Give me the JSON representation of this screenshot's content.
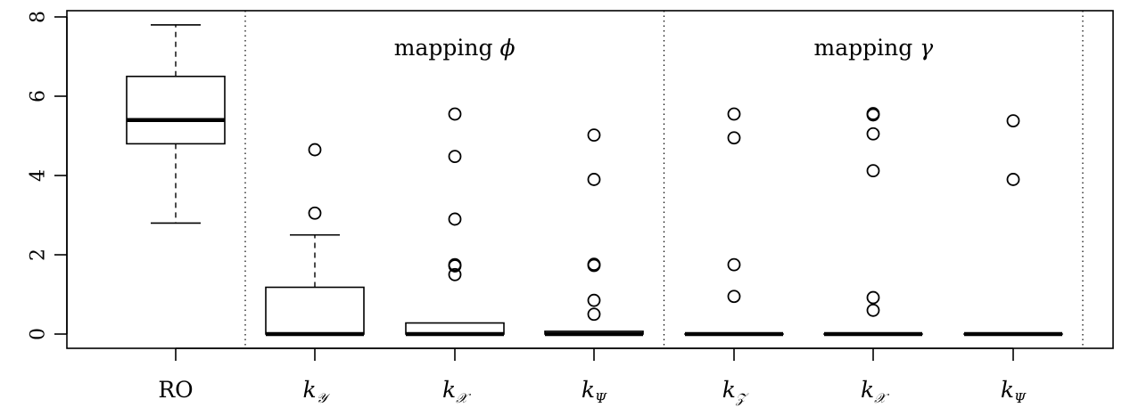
{
  "chart_data": {
    "type": "box",
    "ylim": [
      0,
      8
    ],
    "y_ticks": [
      "0",
      "2",
      "4",
      "6",
      "8"
    ],
    "grid": false,
    "groups": [
      {
        "label": "RO",
        "whisker_low": 2.8,
        "q1": 4.8,
        "median": 5.4,
        "q3": 6.5,
        "whisker_high": 7.8,
        "outliers": []
      },
      {
        "label_main": "k",
        "label_sub": "𝒴",
        "whisker_low": 0,
        "q1": 0,
        "median": 0,
        "q3": 1.18,
        "whisker_high": 2.5,
        "outliers": [
          3.05,
          4.65
        ]
      },
      {
        "label_main": "k",
        "label_sub": "𝒳",
        "whisker_low": 0,
        "q1": 0,
        "median": 0,
        "q3": 0.28,
        "whisker_high": 0.28,
        "outliers": [
          1.5,
          1.72,
          1.75,
          2.9,
          4.48,
          5.55
        ]
      },
      {
        "label_main": "k",
        "label_sub": "Ψ",
        "whisker_low": 0,
        "q1": 0,
        "median": 0,
        "q3": 0.07,
        "whisker_high": 0.07,
        "outliers": [
          0.5,
          0.85,
          1.73,
          1.76,
          3.9,
          5.02
        ]
      },
      {
        "label_main": "k",
        "label_sub": "𝒵",
        "whisker_low": 0,
        "q1": 0,
        "median": 0,
        "q3": 0,
        "whisker_high": 0,
        "outliers": [
          0.95,
          1.75,
          4.95,
          5.55
        ]
      },
      {
        "label_main": "k",
        "label_sub": "𝒳",
        "whisker_low": 0,
        "q1": 0,
        "median": 0,
        "q3": 0,
        "whisker_high": 0,
        "outliers": [
          0.6,
          0.92,
          4.12,
          5.05,
          5.53,
          5.56
        ]
      },
      {
        "label_main": "k",
        "label_sub": "Ψ",
        "whisker_low": 0,
        "q1": 0,
        "median": 0,
        "q3": 0,
        "whisker_high": 0,
        "outliers": [
          3.9,
          5.38
        ]
      }
    ],
    "annotations": [
      {
        "text": "mapping ",
        "symbol": "ϕ",
        "over_groups": [
          2,
          3,
          4
        ]
      },
      {
        "text": "mapping ",
        "symbol": "γ",
        "over_groups": [
          5,
          6,
          7
        ]
      }
    ],
    "separators_after_groups": [
      1,
      4,
      7
    ]
  }
}
